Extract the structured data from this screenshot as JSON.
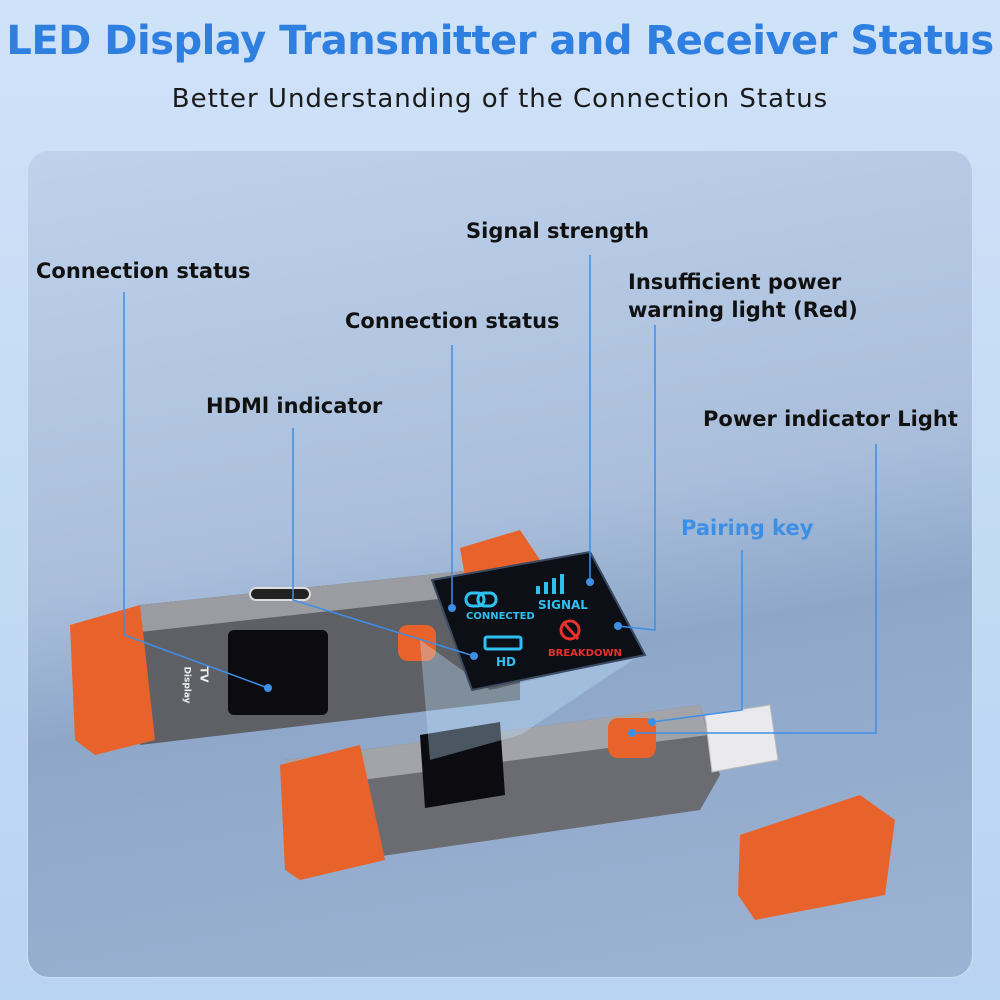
{
  "header": {
    "title": "LED Display Transmitter and Receiver Status",
    "subtitle": "Better Understanding of the Connection Status"
  },
  "labels": {
    "connection_status_left": "Connection status",
    "connection_status_center": "Connection status",
    "hdmi_indicator": "HDMl indicator",
    "signal_strength": "Signal strength",
    "insufficient_power_line1": "Insufficient power",
    "insufficient_power_line2": "warning light (Red)",
    "power_indicator": "Power indicator Light",
    "pairing_key": "Pairing key"
  },
  "display": {
    "connected": "CONNECTED",
    "signal": "SIGNAL",
    "hd": "HD",
    "breakdown": "BREAKDOWN"
  },
  "device": {
    "tv_label": "TV",
    "display_label": "Display"
  },
  "colors": {
    "accent": "#2f7fe0",
    "screen_blue": "#2ec0f0",
    "warning_red": "#e8322a",
    "cap_orange": "#e8632b"
  }
}
